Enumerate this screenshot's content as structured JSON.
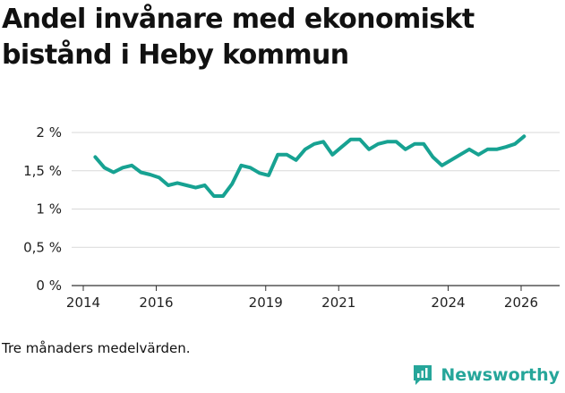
{
  "chart_data": {
    "type": "line",
    "title": "Andel invånare med ekonomiskt bistånd i Heby kommun",
    "note": "Tre månaders medelvärden.",
    "brand": "Newsworthy",
    "line_color": "#17a292",
    "ylim": [
      0,
      2
    ],
    "xlim": [
      2014,
      2026.4
    ],
    "y_ticks": [
      {
        "value": 0,
        "label": "0 %"
      },
      {
        "value": 0.5,
        "label": "0,5 %"
      },
      {
        "value": 1,
        "label": "1 %"
      },
      {
        "value": 1.5,
        "label": "1,5 %"
      },
      {
        "value": 2,
        "label": "2 %"
      }
    ],
    "x_ticks": [
      {
        "value": 2014,
        "label": "2014"
      },
      {
        "value": 2016,
        "label": "2016"
      },
      {
        "value": 2019,
        "label": "2019"
      },
      {
        "value": 2021,
        "label": "2021"
      },
      {
        "value": 2024,
        "label": "2024"
      },
      {
        "value": 2026,
        "label": "2026"
      }
    ],
    "series": [
      {
        "name": "Andel invånare med ekonomiskt bistånd",
        "x": [
          2014.33,
          2014.58,
          2014.83,
          2015.08,
          2015.33,
          2015.58,
          2015.83,
          2016.08,
          2016.33,
          2016.58,
          2016.83,
          2017.08,
          2017.33,
          2017.58,
          2017.83,
          2018.08,
          2018.33,
          2018.58,
          2018.83,
          2019.08,
          2019.33,
          2019.58,
          2019.83,
          2020.08,
          2020.33,
          2020.58,
          2020.83,
          2021.08,
          2021.33,
          2021.58,
          2021.83,
          2022.08,
          2022.33,
          2022.58,
          2022.83,
          2023.08,
          2023.33,
          2023.58,
          2023.83,
          2024.08,
          2024.33,
          2024.58,
          2024.83,
          2025.08,
          2025.33,
          2025.58,
          2025.83,
          2026.08
        ],
        "values": [
          1.68,
          1.54,
          1.48,
          1.54,
          1.57,
          1.48,
          1.45,
          1.41,
          1.31,
          1.34,
          1.31,
          1.28,
          1.31,
          1.17,
          1.17,
          1.33,
          1.57,
          1.54,
          1.47,
          1.44,
          1.71,
          1.71,
          1.64,
          1.78,
          1.85,
          1.88,
          1.71,
          1.81,
          1.91,
          1.91,
          1.78,
          1.85,
          1.88,
          1.88,
          1.78,
          1.85,
          1.85,
          1.68,
          1.57,
          1.64,
          1.71,
          1.78,
          1.71,
          1.78,
          1.78,
          1.81,
          1.85,
          1.95
        ]
      }
    ]
  }
}
